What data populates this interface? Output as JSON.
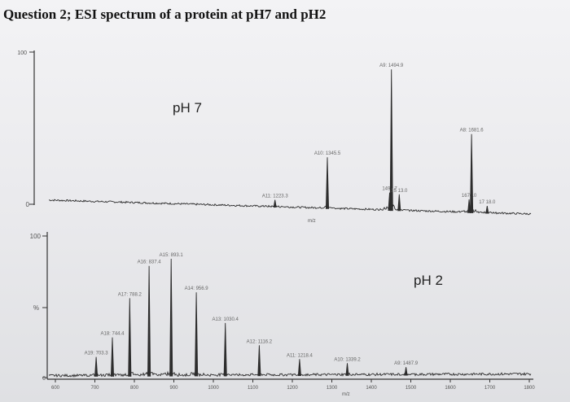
{
  "question_title": "Question 2; ESI spectrum of a protein at pH7 and pH2",
  "chart_data": [
    {
      "type": "line",
      "panel": "top",
      "annotation": "pH 7",
      "ylim": [
        0,
        100
      ],
      "y_ticks": [
        "100",
        "0"
      ],
      "xlabel": "m/z",
      "xlim": [
        700,
        1820
      ],
      "grid": false,
      "peaks": [
        {
          "label": "A11: 1223.3",
          "x": 1223.3,
          "y": 5
        },
        {
          "label": "A10: 1345.5",
          "x": 1345.5,
          "y": 34
        },
        {
          "label": "1490.7",
          "x": 1490.7,
          "y": 12
        },
        {
          "label": "A9: 1494.9",
          "x": 1494.9,
          "y": 93
        },
        {
          "label": "15 13.0",
          "x": 1513.0,
          "y": 11
        },
        {
          "label": "1676.0",
          "x": 1676.0,
          "y": 9
        },
        {
          "label": "A8: 1681.6",
          "x": 1681.6,
          "y": 52
        },
        {
          "label": "17 18.0",
          "x": 1718.0,
          "y": 5
        }
      ]
    },
    {
      "type": "line",
      "panel": "bottom",
      "annotation": "pH 2",
      "ylim": [
        0,
        100
      ],
      "y_ticks": [
        "100",
        "%",
        "0"
      ],
      "xlabel": "m/z",
      "xlim": [
        600,
        1820
      ],
      "x_ticks": [
        "600",
        "700",
        "800",
        "900",
        "1000",
        "1100",
        "1200",
        "1300",
        "1400",
        "1500",
        "1600",
        "1700",
        "1800"
      ],
      "grid": false,
      "peaks": [
        {
          "label": "A19: 703.3",
          "x": 703.3,
          "y": 14
        },
        {
          "label": "A18: 744.4",
          "x": 744.4,
          "y": 28
        },
        {
          "label": "A17: 788.2",
          "x": 788.2,
          "y": 56
        },
        {
          "label": "A16: 837.4",
          "x": 837.4,
          "y": 79
        },
        {
          "label": "A15: 893.1",
          "x": 893.1,
          "y": 84
        },
        {
          "label": "A14: 956.9",
          "x": 956.9,
          "y": 60
        },
        {
          "label": "A13: 1030.4",
          "x": 1030.4,
          "y": 38
        },
        {
          "label": "A12: 1116.2",
          "x": 1116.2,
          "y": 22
        },
        {
          "label": "A11: 1218.4",
          "x": 1218.4,
          "y": 12
        },
        {
          "label": "A10: 1339.2",
          "x": 1339.2,
          "y": 9
        },
        {
          "label": "A9: 1487.9",
          "x": 1487.9,
          "y": 6
        }
      ]
    }
  ]
}
